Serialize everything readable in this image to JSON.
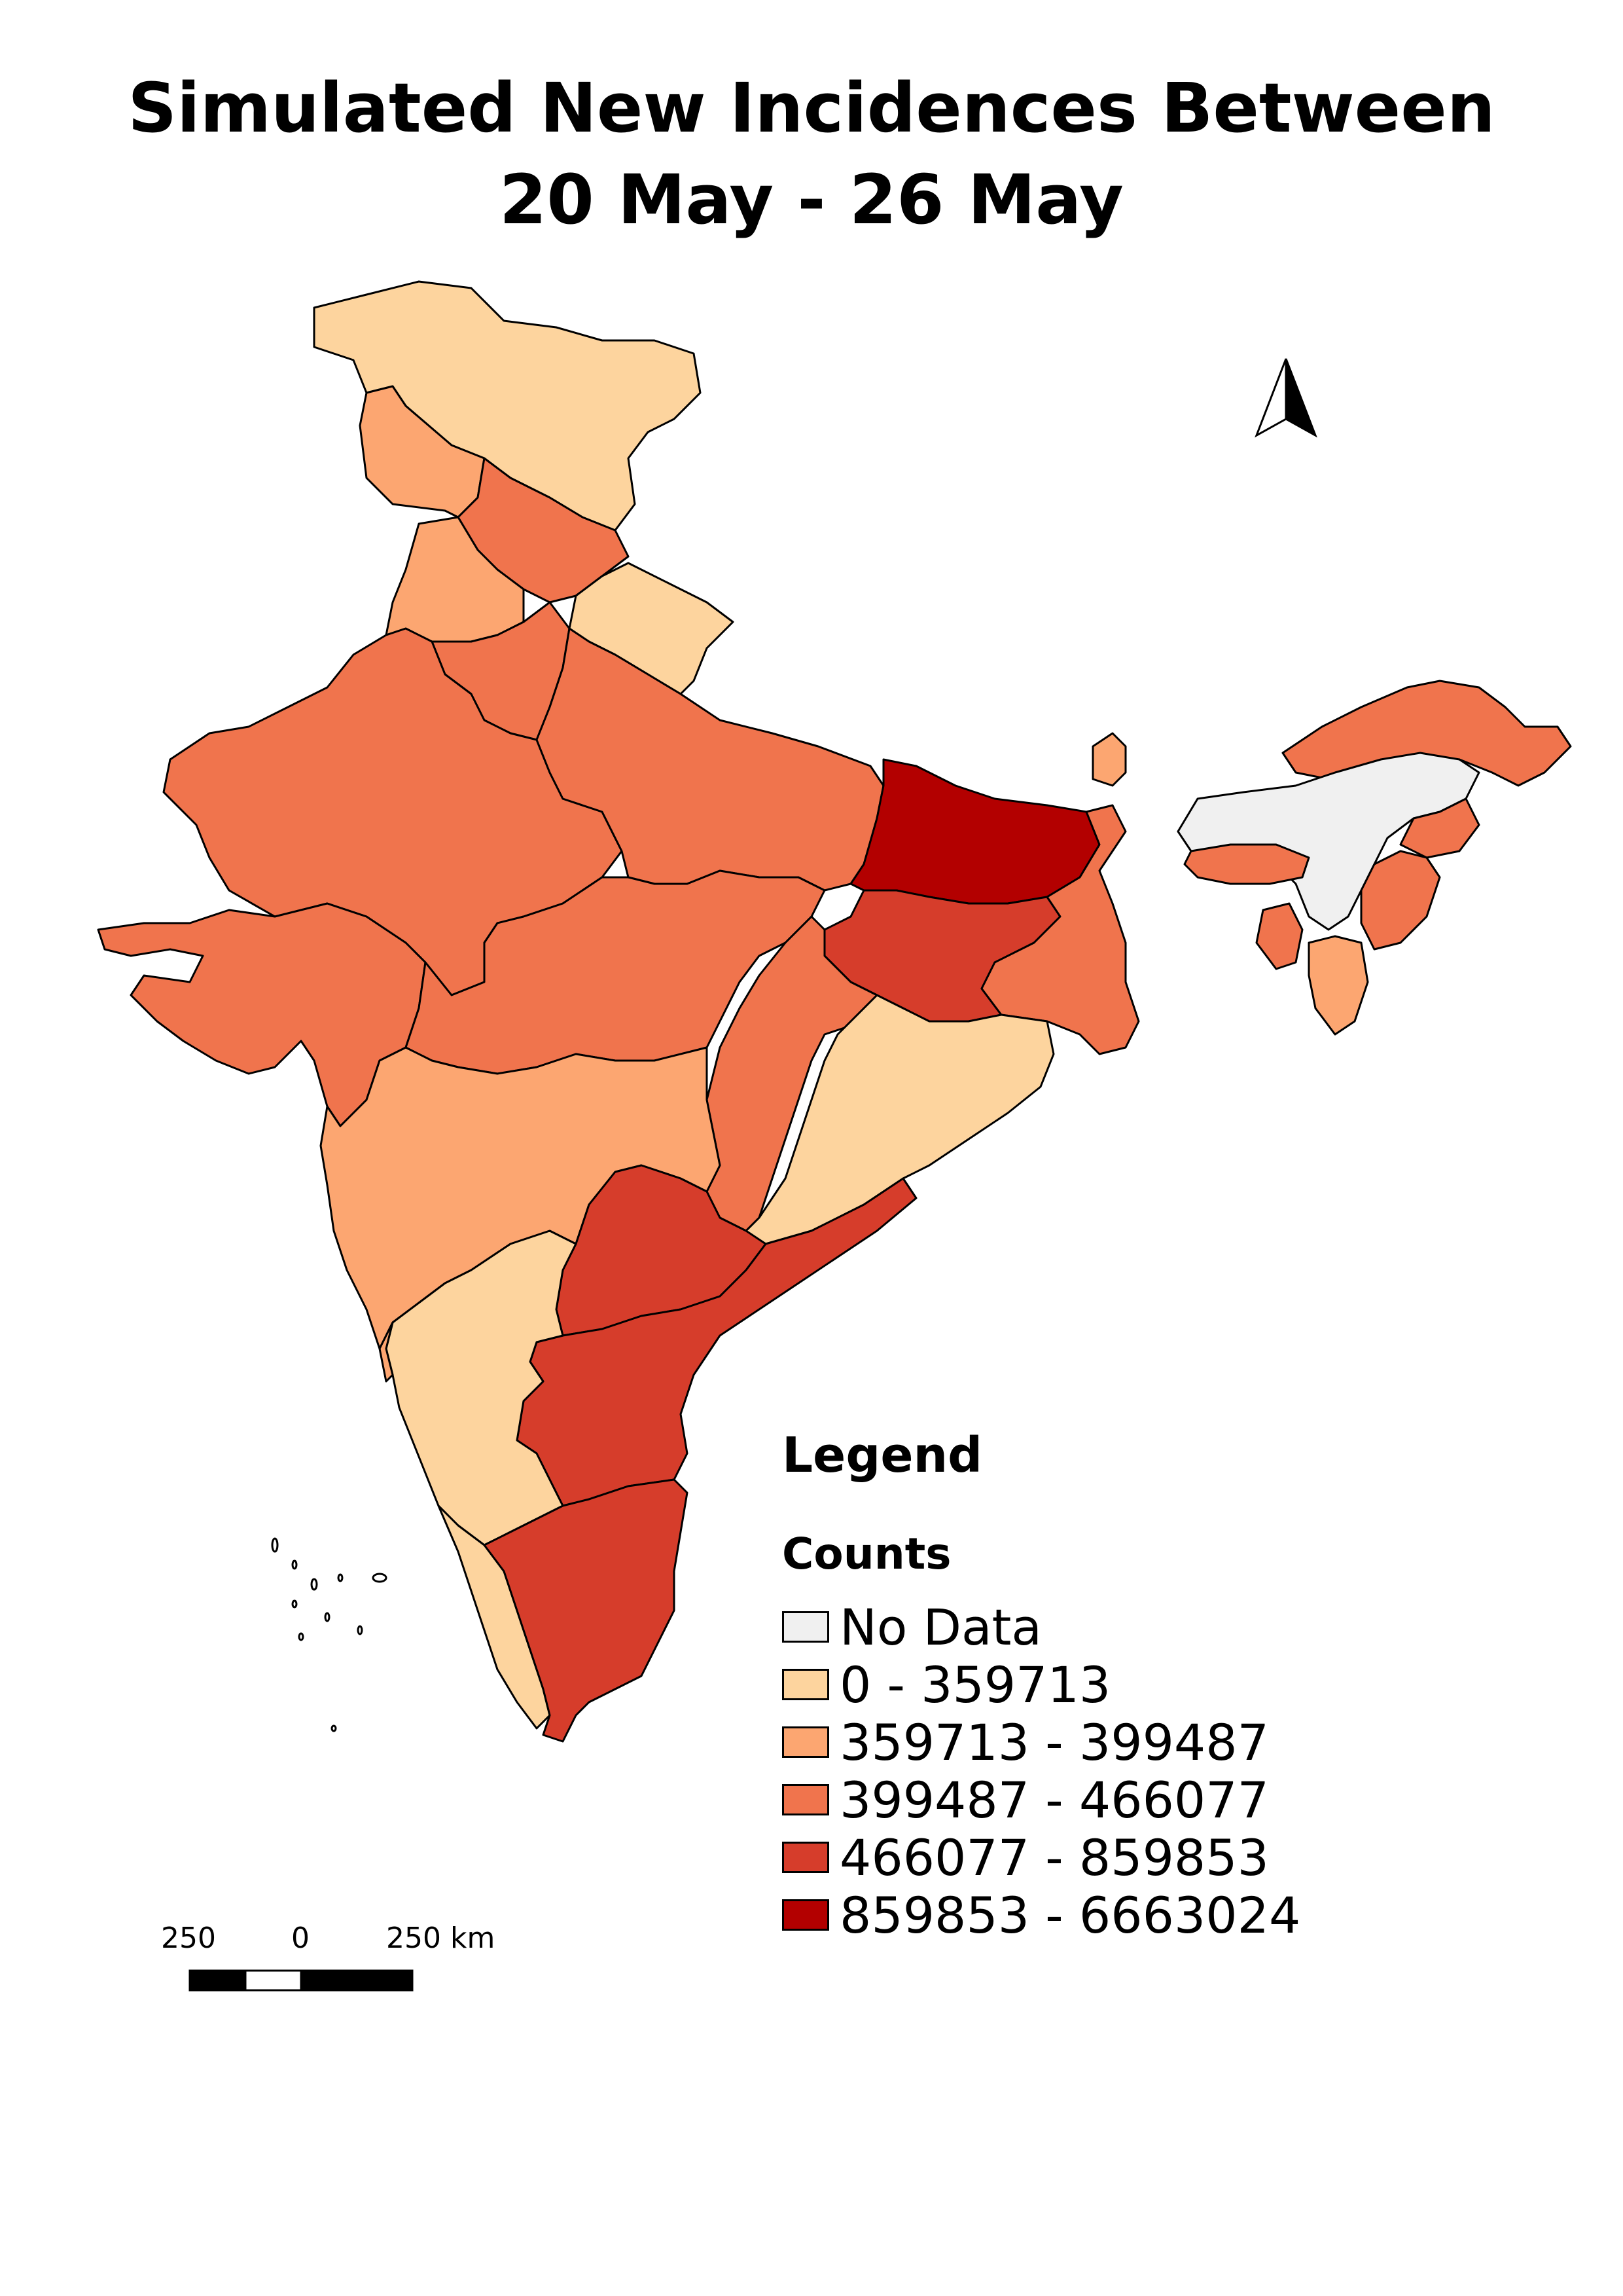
{
  "title": {
    "line1": "Simulated New Incidences Between",
    "line2": "20 May - 26 May"
  },
  "legend": {
    "title": "Legend",
    "subtitle": "Counts",
    "items": [
      {
        "label": "No Data",
        "color": "#f0f0f0"
      },
      {
        "label": " 0 - 359713",
        "color": "#fdd49e"
      },
      {
        "label": " 359713 - 399487",
        "color": "#fca671"
      },
      {
        "label": " 399487 - 466077",
        "color": "#f0744d"
      },
      {
        "label": " 466077 - 859853",
        "color": "#d63d2b"
      },
      {
        "label": " 859853 - 6663024",
        "color": "#b30000"
      }
    ]
  },
  "scale_bar": {
    "labels": [
      "250",
      "0",
      "250 km"
    ]
  },
  "north_arrow": {
    "icon": "north-arrow-icon"
  }
}
